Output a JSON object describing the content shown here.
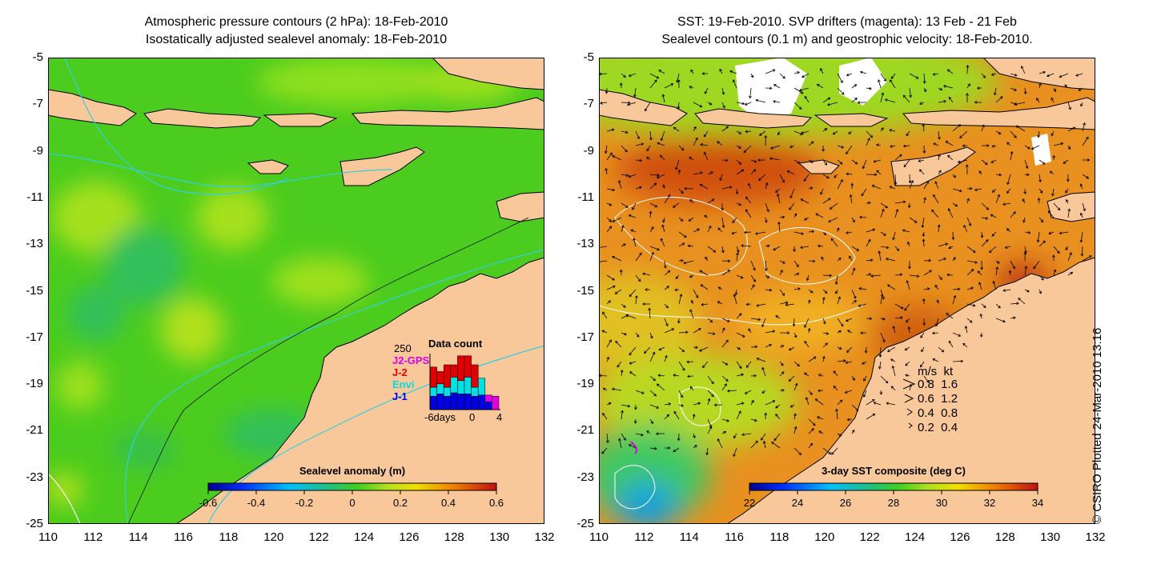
{
  "left_panel": {
    "title_line1": "Atmospheric pressure contours (2 hPa): 18-Feb-2010",
    "title_line2": "Isostatically adjusted sealevel anomaly: 18-Feb-2010",
    "colorbar": {
      "title": "Sealevel anomaly (m)",
      "ticks": [
        "-0.6",
        "-0.4",
        "-0.2",
        "0",
        "0.2",
        "0.4",
        "0.6"
      ]
    },
    "data_count": {
      "title": "Data count",
      "max_label": "250",
      "legend": [
        {
          "label": "J2-GPS",
          "color": "#e000e0"
        },
        {
          "label": "J-2",
          "color": "#e00000"
        },
        {
          "label": "Envi",
          "color": "#00e0e0"
        },
        {
          "label": "J-1",
          "color": "#0000e0"
        }
      ],
      "x_ticks": [
        "-6days",
        "0",
        "4"
      ]
    }
  },
  "right_panel": {
    "title_line1": "SST: 19-Feb-2010. SVP drifters (magenta): 13 Feb - 21 Feb",
    "title_line2": "Sealevel contours (0.1 m) and geostrophic velocity: 18-Feb-2010.",
    "colorbar": {
      "title": "3-day SST composite (deg C)",
      "ticks": [
        "22",
        "24",
        "26",
        "28",
        "30",
        "32",
        "34"
      ]
    },
    "speed_legend": {
      "header": "m/s  kt",
      "rows": [
        "0.8  1.6",
        "0.6  1.2",
        "0.4  0.8",
        "0.2  0.4"
      ]
    }
  },
  "axes": {
    "y_ticks": [
      "-5",
      "-7",
      "-9",
      "-11",
      "-13",
      "-15",
      "-17",
      "-19",
      "-21",
      "-23",
      "-25"
    ],
    "x_ticks": [
      "110",
      "112",
      "114",
      "116",
      "118",
      "120",
      "122",
      "124",
      "126",
      "128",
      "130",
      "132"
    ]
  },
  "credit": "© CSIRO Plotted 24-Mar-2010 13:16",
  "colors": {
    "land": "#f8c89a",
    "sea_green": "#44cc22",
    "sst_orange": "#e89020"
  },
  "chart_data": [
    {
      "type": "heatmap",
      "title": "Isostatically adjusted sealevel anomaly: 18-Feb-2010",
      "xlim": [
        110,
        132
      ],
      "ylim": [
        -25,
        -5
      ],
      "colorbar_range": [
        -0.6,
        0.6
      ],
      "colorbar_ticks": [
        -0.6,
        -0.4,
        -0.2,
        0,
        0.2,
        0.4,
        0.6
      ]
    },
    {
      "type": "bar",
      "title": "Data count",
      "categories": [
        -6,
        -5,
        -4,
        -3,
        -2,
        -1,
        0,
        1,
        2,
        3
      ],
      "series": [
        {
          "name": "J-1",
          "values": [
            60,
            70,
            60,
            75,
            70,
            70,
            60,
            65,
            35,
            0
          ]
        },
        {
          "name": "Envi",
          "values": [
            40,
            45,
            40,
            70,
            60,
            75,
            40,
            75,
            0,
            0
          ]
        },
        {
          "name": "J-2",
          "values": [
            90,
            55,
            100,
            55,
            110,
            95,
            100,
            0,
            0,
            0
          ]
        },
        {
          "name": "J2-GPS",
          "values": [
            0,
            0,
            0,
            0,
            0,
            0,
            0,
            0,
            30,
            60
          ]
        }
      ],
      "xlabel": "days",
      "ylim": [
        0,
        250
      ]
    },
    {
      "type": "heatmap",
      "title": "SST: 19-Feb-2010",
      "xlim": [
        110,
        132
      ],
      "ylim": [
        -25,
        -5
      ],
      "colorbar_range": [
        22,
        34
      ],
      "colorbar_ticks": [
        22,
        24,
        26,
        28,
        30,
        32,
        34
      ]
    }
  ]
}
